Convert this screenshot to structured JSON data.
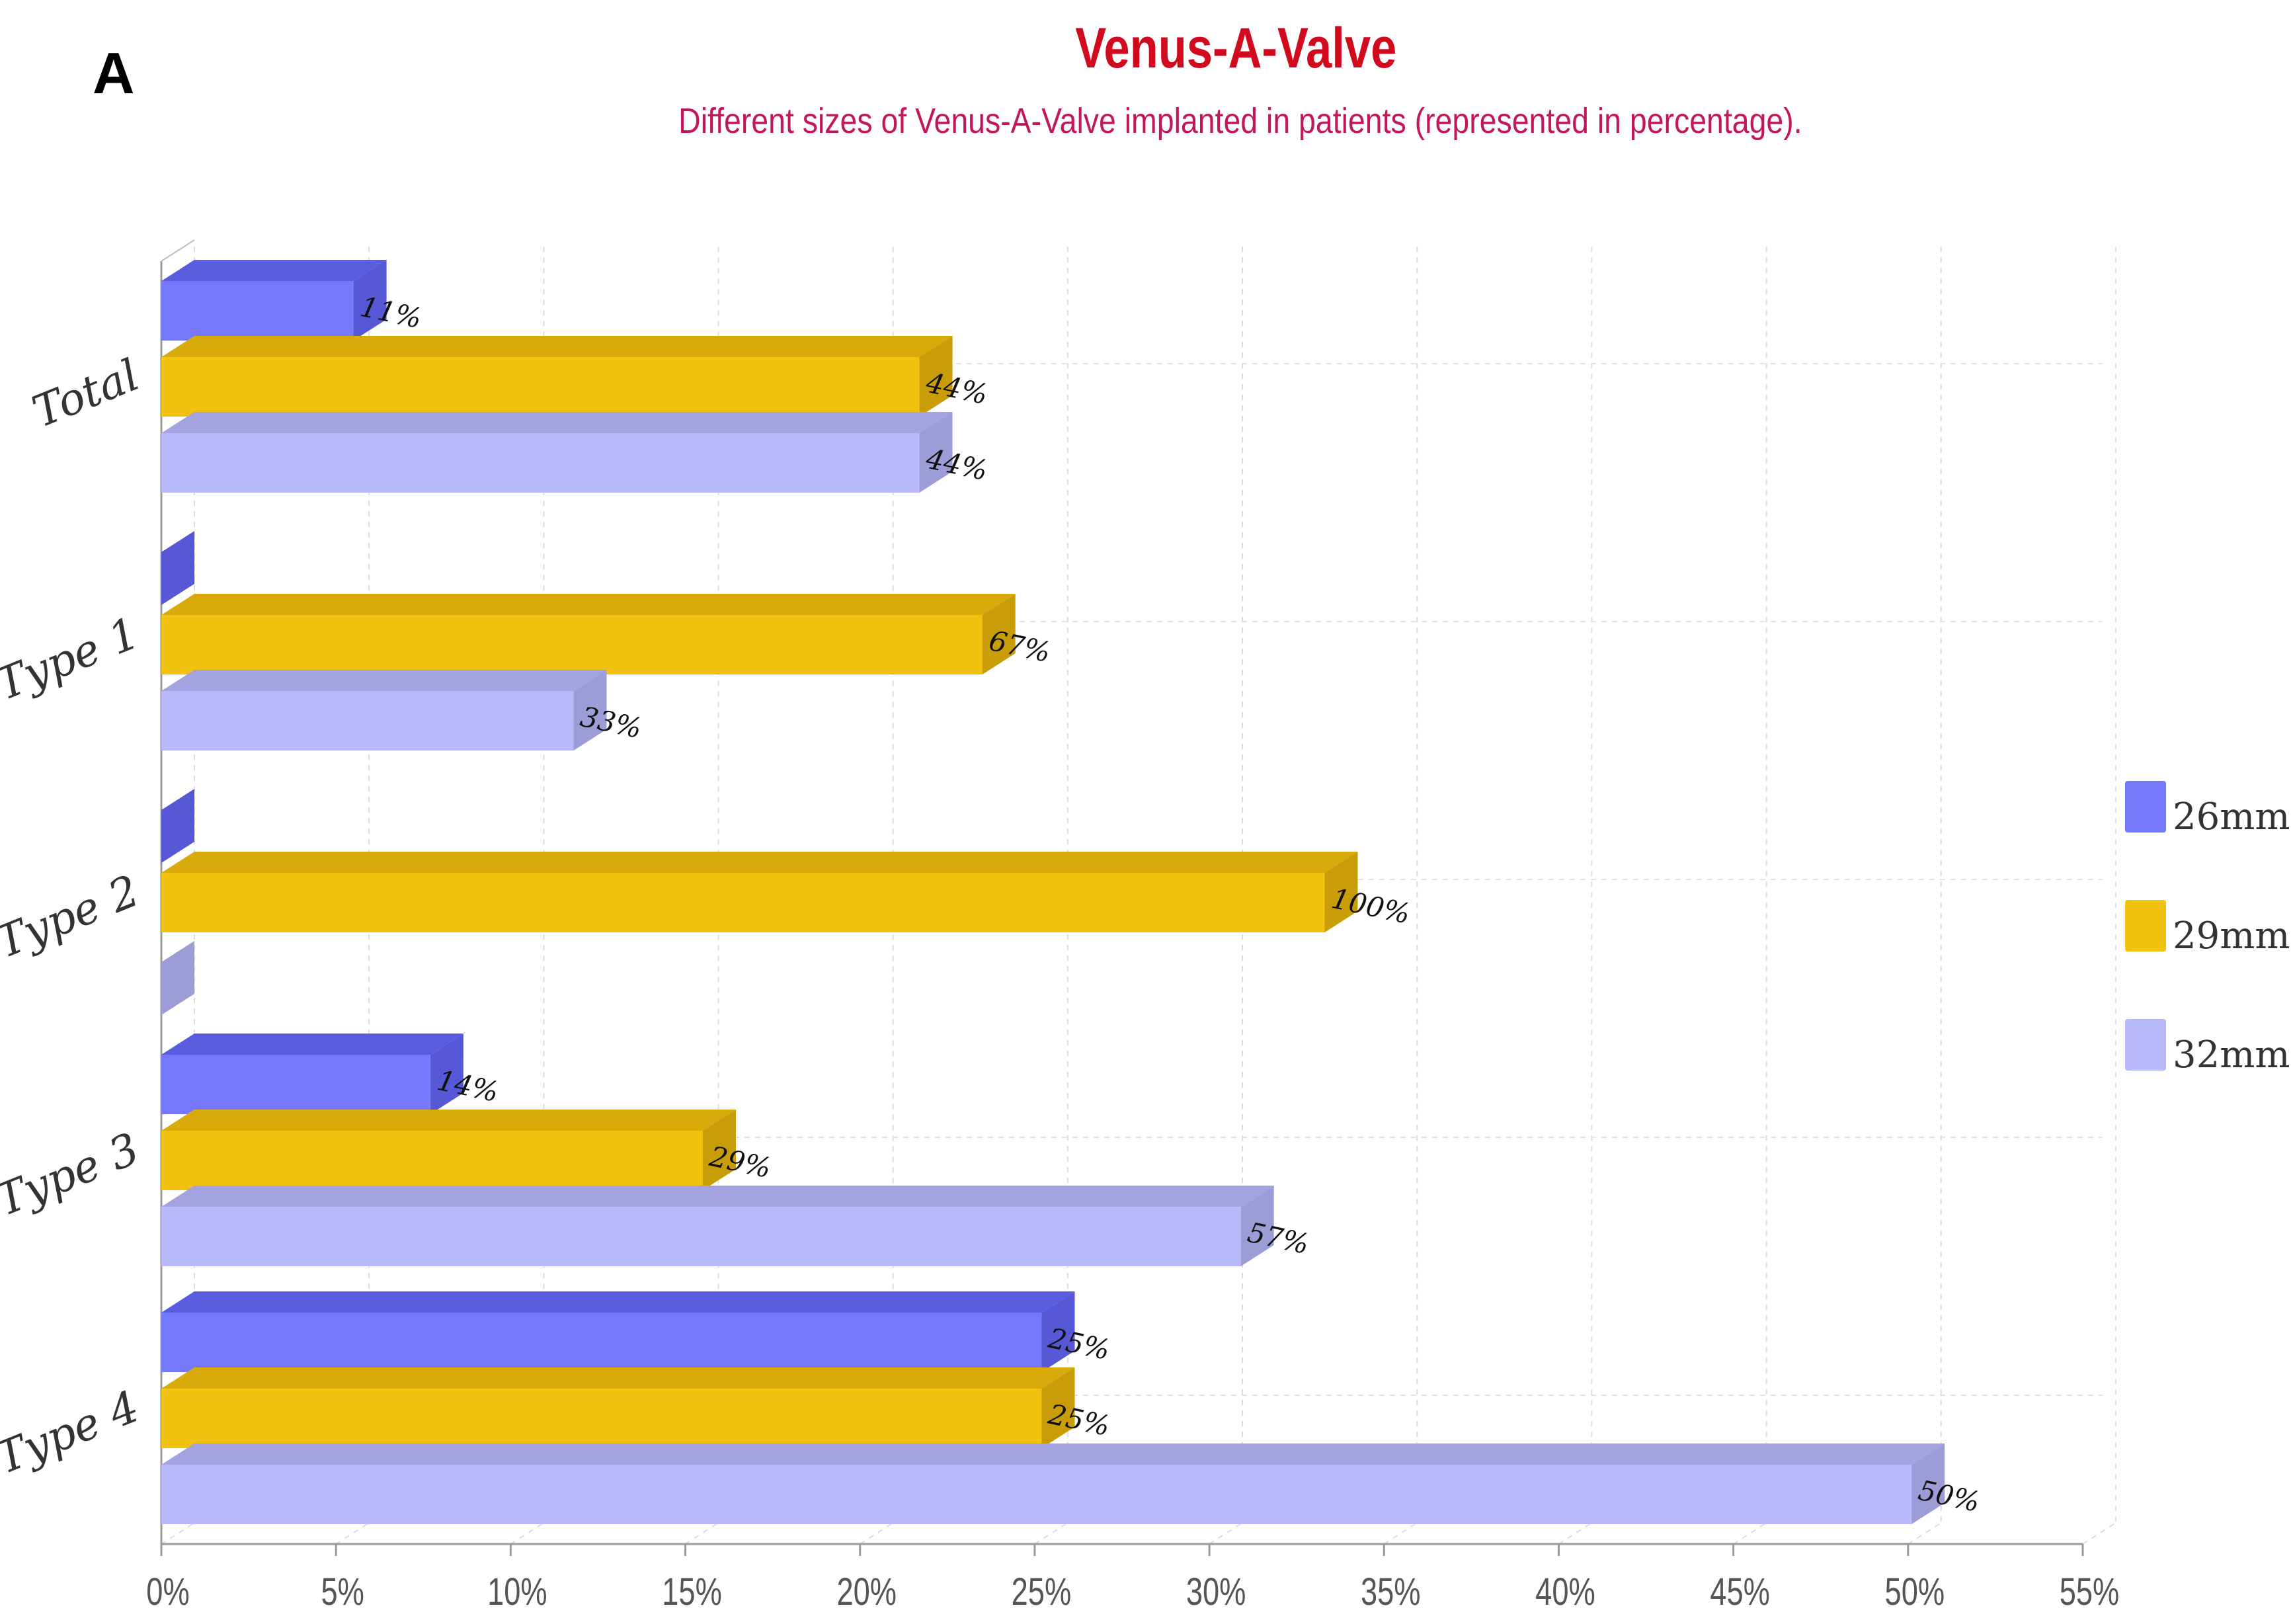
{
  "panel_label": "A",
  "chart_data": {
    "type": "bar",
    "orientation": "horizontal",
    "title": "Venus-A-Valve",
    "subtitle": "Different sizes of Venus-A-Valve implanted in patients (represented in percentage).",
    "categories": [
      "Total",
      "Type 1",
      "Type 2",
      "Type 3",
      "Type 4"
    ],
    "xlim": [
      0,
      55
    ],
    "x_ticks": [
      "0%",
      "5%",
      "10%",
      "15%",
      "20%",
      "25%",
      "30%",
      "35%",
      "40%",
      "45%",
      "50%",
      "55%"
    ],
    "grid": true,
    "legend_position": "right",
    "series": [
      {
        "name": "26mm",
        "color": "#7678fb",
        "top_color": "#5a5ce0",
        "side_color": "#5658d6",
        "values": [
          5.5,
          0,
          0,
          7.7,
          25.2
        ],
        "labels": [
          "11%",
          "",
          "",
          "14%",
          "25%"
        ]
      },
      {
        "name": "29mm",
        "color": "#f1c20f",
        "top_color": "#d8ab0b",
        "side_color": "#c89d07",
        "values": [
          21.7,
          23.5,
          33.3,
          15.5,
          25.2
        ],
        "labels": [
          "44%",
          "67%",
          "100%",
          "29%",
          "25%"
        ]
      },
      {
        "name": "32mm",
        "color": "#b8b9fb",
        "top_color": "#a2a3e0",
        "side_color": "#9c9dd6",
        "values": [
          21.7,
          11.8,
          0,
          30.9,
          50.1
        ],
        "labels": [
          "44%",
          "33%",
          "",
          "57%",
          "50%"
        ]
      }
    ]
  }
}
